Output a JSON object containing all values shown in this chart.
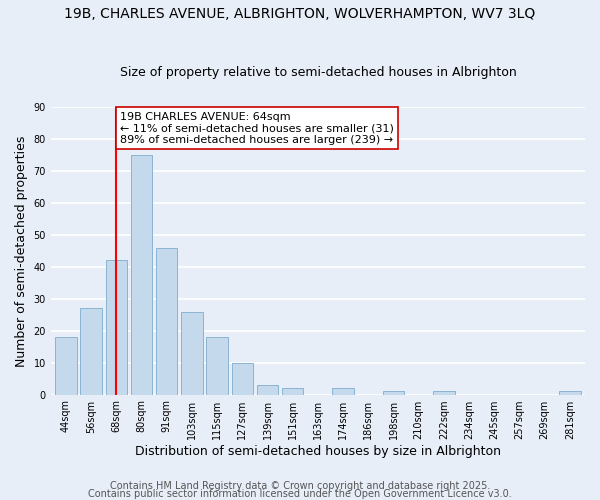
{
  "title": "19B, CHARLES AVENUE, ALBRIGHTON, WOLVERHAMPTON, WV7 3LQ",
  "subtitle": "Size of property relative to semi-detached houses in Albrighton",
  "xlabel": "Distribution of semi-detached houses by size in Albrighton",
  "ylabel": "Number of semi-detached properties",
  "bar_labels": [
    "44sqm",
    "56sqm",
    "68sqm",
    "80sqm",
    "91sqm",
    "103sqm",
    "115sqm",
    "127sqm",
    "139sqm",
    "151sqm",
    "163sqm",
    "174sqm",
    "186sqm",
    "198sqm",
    "210sqm",
    "222sqm",
    "234sqm",
    "245sqm",
    "257sqm",
    "269sqm",
    "281sqm"
  ],
  "bar_values": [
    18,
    27,
    42,
    75,
    46,
    26,
    18,
    10,
    3,
    2,
    0,
    2,
    0,
    1,
    0,
    1,
    0,
    0,
    0,
    0,
    1
  ],
  "bar_color": "#c5d9ec",
  "bar_edge_color": "#8ab4d4",
  "background_color": "#e8eef8",
  "grid_color": "#ffffff",
  "property_line_x": 2.0,
  "property_label": "19B CHARLES AVENUE: 64sqm",
  "annotation_line1": "← 11% of semi-detached houses are smaller (31)",
  "annotation_line2": "89% of semi-detached houses are larger (239) →",
  "ylim": [
    0,
    90
  ],
  "yticks": [
    0,
    10,
    20,
    30,
    40,
    50,
    60,
    70,
    80,
    90
  ],
  "footer1": "Contains HM Land Registry data © Crown copyright and database right 2025.",
  "footer2": "Contains public sector information licensed under the Open Government Licence v3.0.",
  "title_fontsize": 10,
  "subtitle_fontsize": 9,
  "axis_label_fontsize": 9,
  "tick_fontsize": 7,
  "annotation_fontsize": 8,
  "footer_fontsize": 7
}
